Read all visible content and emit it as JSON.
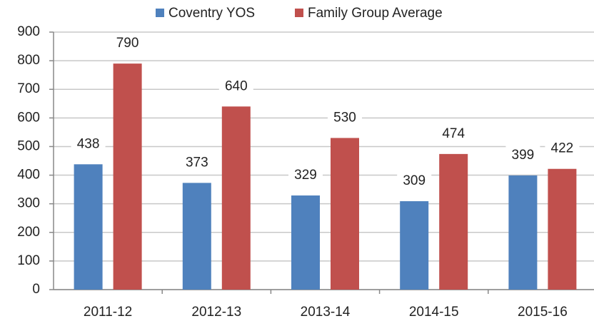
{
  "chart_data": {
    "type": "bar",
    "categories": [
      "2011-12",
      "2012-13",
      "2013-14",
      "2014-15",
      "2015-16"
    ],
    "series": [
      {
        "name": "Coventry YOS",
        "color": "#4f81bd",
        "values": [
          438,
          373,
          329,
          309,
          399
        ]
      },
      {
        "name": "Family Group Average",
        "color": "#c0504d",
        "values": [
          790,
          640,
          530,
          474,
          422
        ]
      }
    ],
    "ylim": [
      0,
      900
    ],
    "yticks": [
      0,
      100,
      200,
      300,
      400,
      500,
      600,
      700,
      800,
      900
    ],
    "grid": true,
    "legend": "top"
  }
}
